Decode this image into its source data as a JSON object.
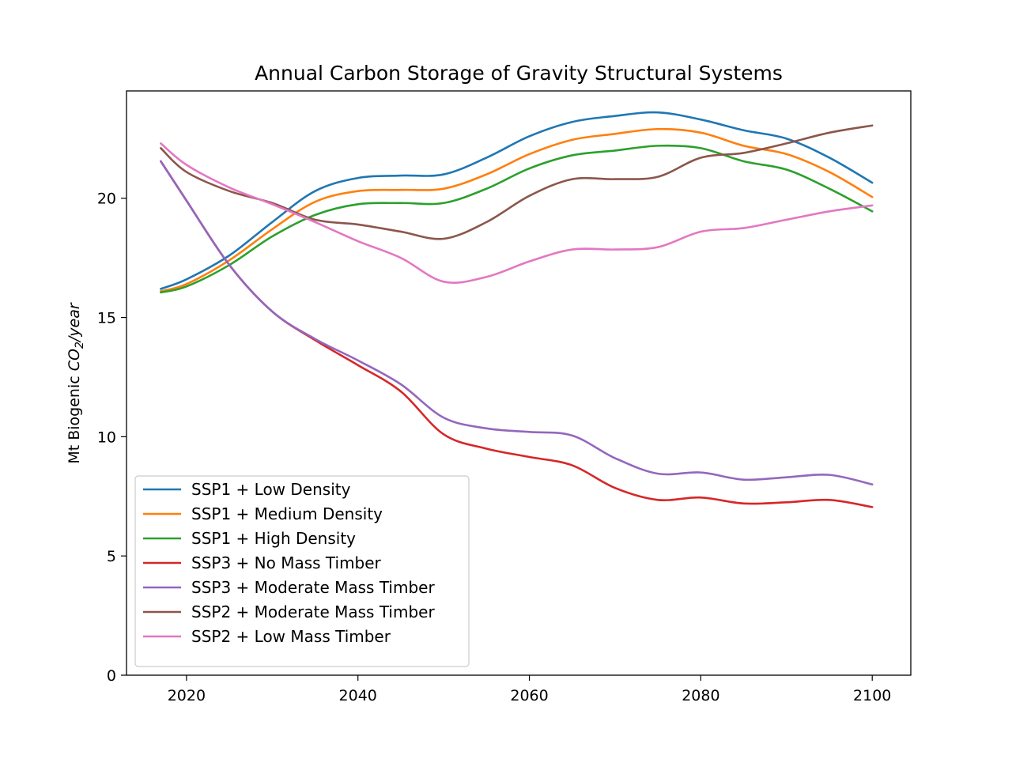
{
  "chart_data": {
    "type": "line",
    "title": "Annual Carbon Storage of Gravity Structural Systems",
    "xlabel": "",
    "ylabel_prefix": "Mt Biogenic ",
    "ylabel_math": "CO",
    "ylabel_sub": "2",
    "ylabel_suffix": "/year",
    "xlim": [
      2013,
      2104.5
    ],
    "ylim": [
      0,
      24.5
    ],
    "xticks": [
      2020,
      2040,
      2060,
      2080,
      2100
    ],
    "yticks": [
      0,
      5,
      10,
      15,
      20
    ],
    "legend_position": "lower-left",
    "x": [
      2017,
      2020,
      2025,
      2030,
      2035,
      2040,
      2045,
      2050,
      2055,
      2060,
      2065,
      2070,
      2075,
      2080,
      2085,
      2090,
      2095,
      2100
    ],
    "series": [
      {
        "name": "SSP1 + Low Density",
        "color": "#1f77b4",
        "values": [
          16.2,
          16.6,
          17.6,
          19.0,
          20.3,
          20.85,
          20.95,
          21.0,
          21.7,
          22.6,
          23.2,
          23.45,
          23.6,
          23.3,
          22.85,
          22.5,
          21.7,
          20.65
        ]
      },
      {
        "name": "SSP1 + Medium Density",
        "color": "#ff7f0e",
        "values": [
          16.1,
          16.4,
          17.4,
          18.7,
          19.85,
          20.3,
          20.35,
          20.4,
          21.0,
          21.85,
          22.45,
          22.7,
          22.9,
          22.75,
          22.2,
          21.85,
          21.1,
          20.05
        ]
      },
      {
        "name": "SSP1 + High Density",
        "color": "#2ca02c",
        "values": [
          16.05,
          16.3,
          17.2,
          18.4,
          19.3,
          19.75,
          19.8,
          19.8,
          20.4,
          21.25,
          21.8,
          22.0,
          22.2,
          22.1,
          21.55,
          21.2,
          20.4,
          19.45
        ]
      },
      {
        "name": "SSP3 + No Mass Timber",
        "color": "#d62728",
        "values": [
          21.55,
          19.9,
          17.2,
          15.25,
          14.05,
          13.0,
          11.9,
          10.1,
          9.5,
          9.15,
          8.8,
          7.85,
          7.35,
          7.45,
          7.2,
          7.25,
          7.35,
          7.05
        ]
      },
      {
        "name": "SSP3 + Moderate Mass Timber",
        "color": "#9467bd",
        "values": [
          21.55,
          19.9,
          17.2,
          15.25,
          14.1,
          13.2,
          12.2,
          10.8,
          10.35,
          10.2,
          10.05,
          9.1,
          8.45,
          8.5,
          8.2,
          8.3,
          8.4,
          8.0
        ]
      },
      {
        "name": "SSP2 + Moderate Mass Timber",
        "color": "#8c564b",
        "values": [
          22.1,
          21.1,
          20.3,
          19.8,
          19.1,
          18.9,
          18.6,
          18.3,
          19.0,
          20.1,
          20.8,
          20.8,
          20.9,
          21.7,
          21.9,
          22.3,
          22.75,
          23.05
        ]
      },
      {
        "name": "SSP2 + Low Mass Timber",
        "color": "#e377c2",
        "values": [
          22.3,
          21.4,
          20.45,
          19.75,
          19.0,
          18.2,
          17.5,
          16.5,
          16.7,
          17.35,
          17.85,
          17.85,
          17.95,
          18.6,
          18.75,
          19.1,
          19.45,
          19.7
        ]
      }
    ]
  }
}
